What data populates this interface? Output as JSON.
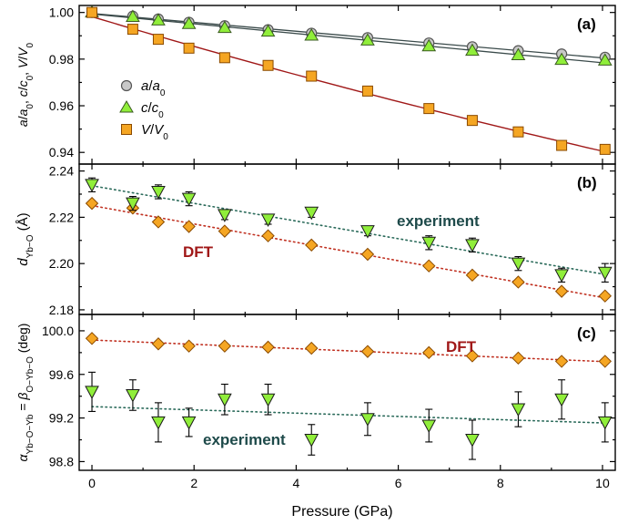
{
  "figure": {
    "xlabel": "Pressure (GPa)",
    "x_ticks": [
      "0",
      "2",
      "4",
      "6",
      "8",
      "10"
    ],
    "colors": {
      "a_marker": "#c8c8c8",
      "c_marker": "#90ee3a",
      "v_marker": "#f5a623",
      "dft_marker": "#f5a623",
      "exp_marker": "#90ee3a",
      "fit_dark": "#3a4a4a",
      "fit_red": "#a01818",
      "dft_text": "#a01818",
      "exp_text": "#1e4a4a",
      "exp_dotted": "#2a6a5a",
      "dft_dotted": "#c03020"
    }
  },
  "chart_data": [
    {
      "panel_label": "(a)",
      "type": "scatter",
      "ylabel_parts": [
        "a",
        "/",
        "a",
        "0",
        ", ",
        "c",
        "/",
        "c",
        "0",
        ", ",
        "V",
        "/",
        "V",
        "0"
      ],
      "y_ticks": [
        "1.00",
        "0.98",
        "0.96",
        "0.94"
      ],
      "ylim": [
        0.935,
        1.003
      ],
      "xlim": [
        -0.25,
        10.25
      ],
      "legend_position": "left",
      "series": [
        {
          "name_parts": [
            "a",
            "/",
            "a",
            "0"
          ],
          "marker": "circle",
          "x": [
            0,
            0.8,
            1.3,
            1.9,
            2.6,
            3.45,
            4.3,
            5.4,
            6.6,
            7.45,
            8.35,
            9.2,
            10.05
          ],
          "y": [
            1.0,
            0.9984,
            0.9972,
            0.9958,
            0.9943,
            0.9926,
            0.9911,
            0.9892,
            0.9869,
            0.9853,
            0.9836,
            0.9822,
            0.9808
          ]
        },
        {
          "name_parts": [
            "c",
            "/",
            "c",
            "0"
          ],
          "marker": "triangle-up",
          "x": [
            0,
            0.8,
            1.3,
            1.9,
            2.6,
            3.45,
            4.3,
            5.4,
            6.6,
            7.45,
            8.35,
            9.2,
            10.05
          ],
          "y": [
            1.0,
            0.9981,
            0.9966,
            0.9951,
            0.9934,
            0.9918,
            0.9901,
            0.988,
            0.9855,
            0.9836,
            0.9817,
            0.9797,
            0.9794
          ]
        },
        {
          "name_parts": [
            "V",
            "/",
            "V",
            "0"
          ],
          "marker": "square",
          "x": [
            0,
            0.8,
            1.3,
            1.9,
            2.6,
            3.45,
            4.3,
            5.4,
            6.6,
            7.45,
            8.35,
            9.2,
            10.05
          ],
          "y": [
            1.0,
            0.9928,
            0.9885,
            0.9847,
            0.9806,
            0.9773,
            0.9727,
            0.9663,
            0.9588,
            0.9537,
            0.9488,
            0.943,
            0.9413
          ]
        }
      ]
    },
    {
      "panel_label": "(b)",
      "type": "scatter",
      "ylabel_parts": [
        "d",
        "Yb−O",
        " (Å)"
      ],
      "y_ticks": [
        "2.24",
        "2.22",
        "2.20",
        "2.18"
      ],
      "ylim": [
        2.178,
        2.243
      ],
      "xlim": [
        -0.25,
        10.25
      ],
      "annotations": [
        "experiment",
        "DFT"
      ],
      "series": [
        {
          "name": "DFT",
          "marker": "diamond",
          "x": [
            0,
            0.8,
            1.3,
            1.9,
            2.6,
            3.45,
            4.3,
            5.4,
            6.6,
            7.45,
            8.35,
            9.2,
            10.05
          ],
          "y": [
            2.226,
            2.224,
            2.218,
            2.216,
            2.214,
            2.212,
            2.208,
            2.204,
            2.199,
            2.195,
            2.192,
            2.188,
            2.186
          ]
        },
        {
          "name": "experiment",
          "marker": "triangle-down",
          "x": [
            0,
            0.8,
            1.3,
            1.9,
            2.6,
            3.45,
            4.3,
            5.4,
            6.6,
            7.45,
            8.35,
            9.2,
            10.05
          ],
          "y": [
            2.234,
            2.226,
            2.231,
            2.228,
            2.221,
            2.219,
            2.222,
            2.214,
            2.209,
            2.208,
            2.2,
            2.195,
            2.196
          ],
          "err": [
            0.003,
            0.003,
            0.003,
            0.003,
            0.002,
            0.002,
            0.002,
            0.002,
            0.003,
            0.003,
            0.003,
            0.003,
            0.004
          ]
        }
      ]
    },
    {
      "panel_label": "(c)",
      "type": "scatter",
      "ylabel_parts": [
        "α",
        "Yb−O−Yb",
        " = ",
        "β",
        "O−Yb−O",
        " (deg)"
      ],
      "y_ticks": [
        "100.0",
        "99.6",
        "99.2",
        "98.8"
      ],
      "ylim": [
        98.72,
        100.15
      ],
      "xlim": [
        -0.25,
        10.25
      ],
      "annotations": [
        "DFT",
        "experiment"
      ],
      "series": [
        {
          "name": "DFT",
          "marker": "diamond",
          "x": [
            0,
            1.3,
            1.9,
            2.6,
            3.45,
            4.3,
            5.4,
            6.6,
            7.45,
            8.35,
            9.2,
            10.05
          ],
          "y": [
            99.93,
            99.88,
            99.86,
            99.86,
            99.85,
            99.84,
            99.81,
            99.8,
            99.77,
            99.75,
            99.72,
            99.72
          ]
        },
        {
          "name": "experiment",
          "marker": "triangle-down",
          "x": [
            0,
            0.8,
            1.3,
            1.9,
            2.6,
            3.45,
            4.3,
            5.4,
            6.6,
            7.45,
            8.35,
            9.2,
            10.05
          ],
          "y": [
            99.44,
            99.41,
            99.16,
            99.16,
            99.37,
            99.37,
            99.0,
            99.19,
            99.13,
            99.0,
            99.28,
            99.37,
            99.16
          ],
          "err": [
            0.18,
            0.14,
            0.18,
            0.13,
            0.14,
            0.14,
            0.14,
            0.15,
            0.15,
            0.18,
            0.16,
            0.18,
            0.18
          ]
        }
      ]
    }
  ]
}
